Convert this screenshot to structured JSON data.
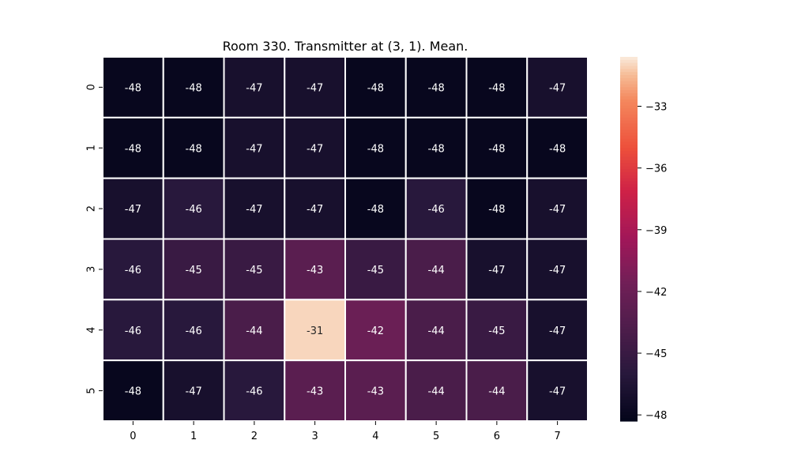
{
  "chart_data": {
    "type": "heatmap",
    "title": "Room 330. Transmitter at (3, 1). Mean.",
    "x_labels": [
      "0",
      "1",
      "2",
      "3",
      "4",
      "5",
      "6",
      "7"
    ],
    "y_labels": [
      "0",
      "1",
      "2",
      "3",
      "4",
      "5"
    ],
    "values": [
      [
        -48,
        -48,
        -47,
        -47,
        -48,
        -48,
        -48,
        -47
      ],
      [
        -48,
        -48,
        -47,
        -47,
        -48,
        -48,
        -48,
        -48
      ],
      [
        -47,
        -46,
        -47,
        -47,
        -48,
        -46,
        -48,
        -47
      ],
      [
        -46,
        -45,
        -45,
        -43,
        -45,
        -44,
        -47,
        -47
      ],
      [
        -46,
        -46,
        -44,
        -31,
        -42,
        -44,
        -45,
        -47
      ],
      [
        -48,
        -47,
        -46,
        -43,
        -43,
        -44,
        -44,
        -47
      ]
    ],
    "colorbar": {
      "min": -48.3,
      "max": -30.6,
      "ticks": [
        -33,
        -36,
        -39,
        -42,
        -45,
        -48
      ],
      "tick_labels": [
        "−33",
        "−36",
        "−39",
        "−42",
        "−45",
        "−48"
      ]
    },
    "colormap": "rocket",
    "grid": true
  }
}
